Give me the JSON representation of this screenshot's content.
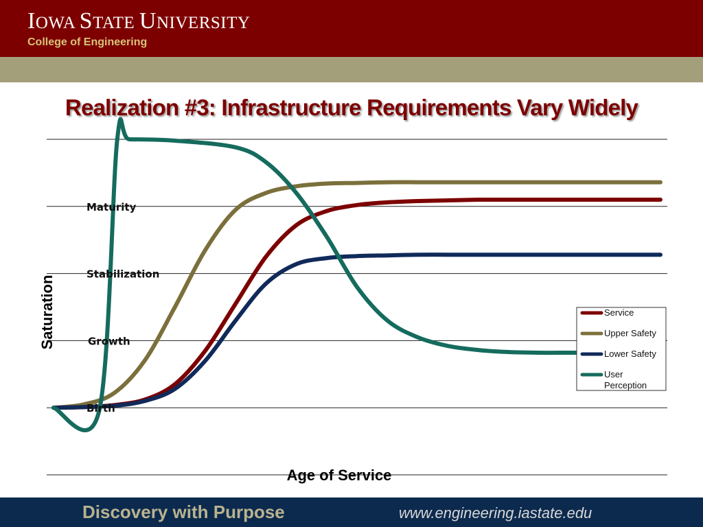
{
  "header": {
    "university": "Iowa State University",
    "college": "College of Engineering"
  },
  "slide_title": "Realization #3: Infrastructure Requirements Vary Widely",
  "chart_data": {
    "type": "line",
    "title": "",
    "xlabel": "Age of Service",
    "ylabel": "Saturation",
    "y_tick_labels": [
      "Birth",
      "Growth",
      "Stabilization",
      "Maturity"
    ],
    "xlim": [
      0,
      100
    ],
    "ylim": [
      -1,
      4
    ],
    "grid": true,
    "legend_position": "right",
    "x": [
      0,
      5,
      10,
      15,
      20,
      25,
      30,
      35,
      40,
      45,
      50,
      55,
      60,
      65,
      70,
      75,
      80,
      85,
      90,
      95,
      100
    ],
    "series": [
      {
        "name": "Service",
        "color": "#7d0000",
        "values": [
          0,
          0.01,
          0.04,
          0.12,
          0.35,
          0.85,
          1.55,
          2.25,
          2.72,
          2.93,
          3.02,
          3.06,
          3.08,
          3.09,
          3.1,
          3.1,
          3.1,
          3.1,
          3.1,
          3.1,
          3.1
        ]
      },
      {
        "name": "Upper Safety",
        "color": "#7b6f3b",
        "values": [
          0,
          0.05,
          0.22,
          0.7,
          1.5,
          2.35,
          2.95,
          3.2,
          3.3,
          3.34,
          3.35,
          3.36,
          3.36,
          3.36,
          3.36,
          3.36,
          3.36,
          3.36,
          3.36,
          3.36,
          3.36
        ]
      },
      {
        "name": "Lower Safety",
        "color": "#102a5a",
        "values": [
          0,
          0.01,
          0.03,
          0.1,
          0.28,
          0.7,
          1.3,
          1.85,
          2.14,
          2.23,
          2.26,
          2.27,
          2.28,
          2.28,
          2.28,
          2.28,
          2.28,
          2.28,
          2.28,
          2.28,
          2.28
        ]
      },
      {
        "name": "User Perception",
        "color": "#156b5e",
        "x": [
          0,
          7.5,
          10.5,
          12.5,
          20,
          30,
          35,
          40,
          45,
          50,
          55,
          60,
          65,
          70,
          75,
          80,
          85,
          90,
          100
        ],
        "values": [
          0,
          -0.05,
          4,
          4,
          3.98,
          3.88,
          3.66,
          3.2,
          2.55,
          1.8,
          1.3,
          1.05,
          0.92,
          0.86,
          0.83,
          0.82,
          0.82,
          0.82,
          0.82
        ]
      }
    ]
  },
  "footer": {
    "tagline": "Discovery with Purpose",
    "url": "www.engineering.iastate.edu"
  }
}
